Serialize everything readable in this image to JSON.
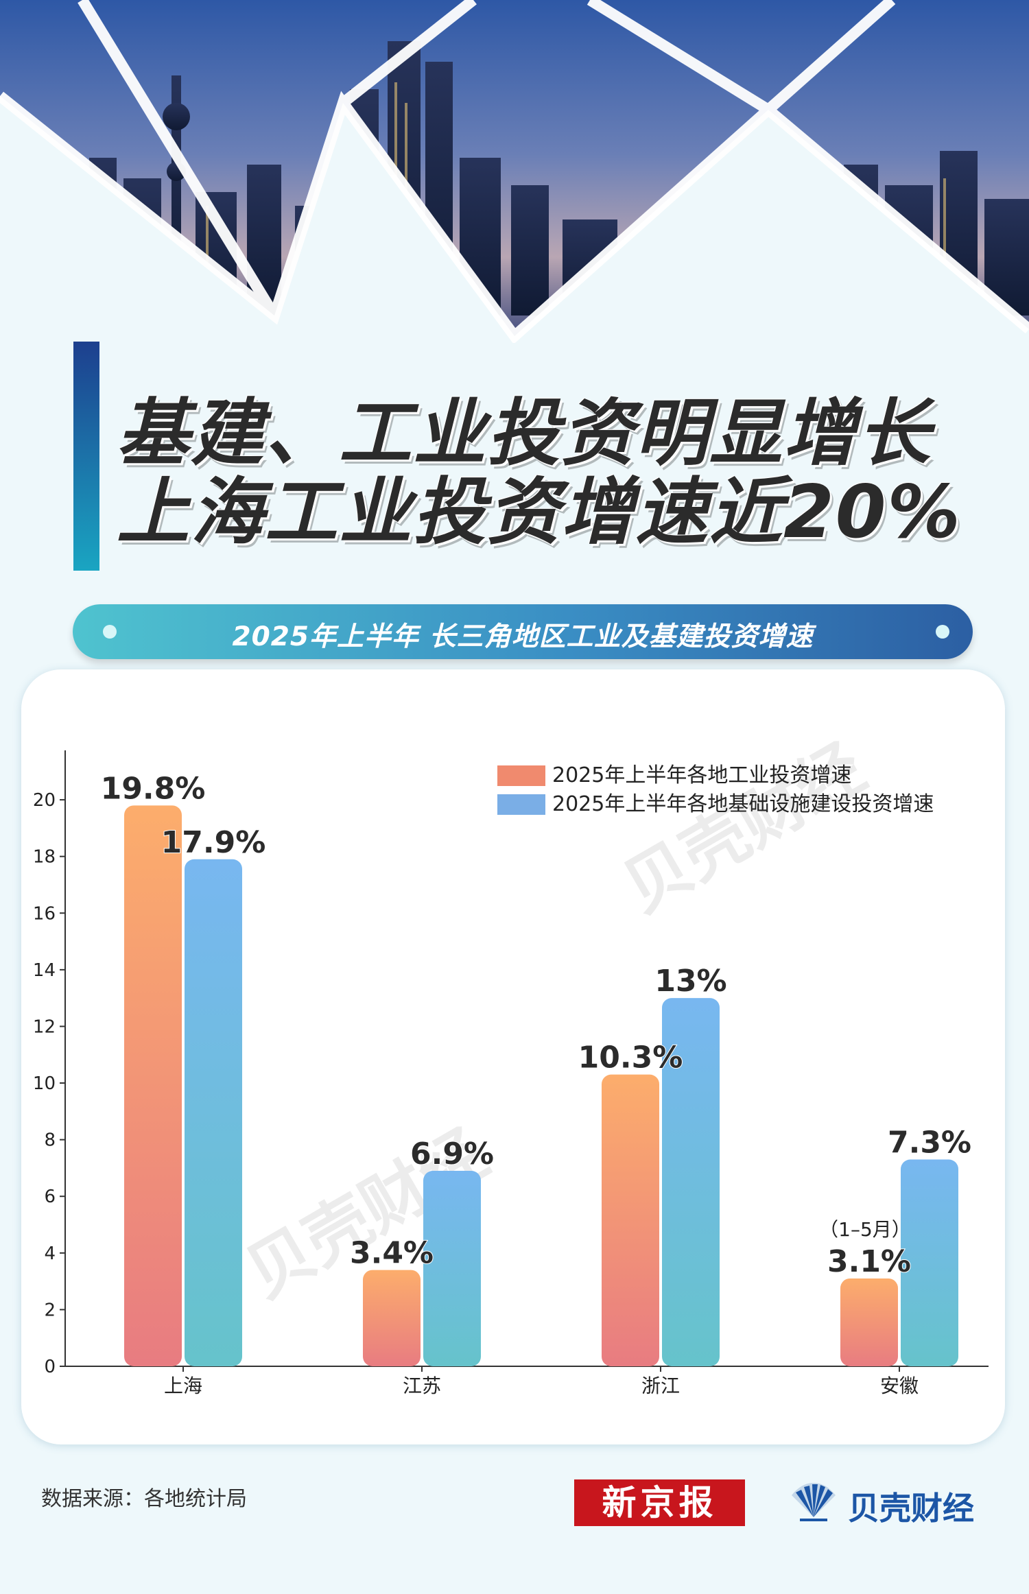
{
  "headline": {
    "line1": "基建、工业投资明显增长",
    "line2": "上海工业投资增速近20%"
  },
  "subtitle": "2025年上半年 长三角地区工业及基建投资增速",
  "watermark": "贝壳财经",
  "source_note": "数据来源：各地统计局",
  "logos": {
    "xinjingbao": "新京报",
    "beike": "贝壳财经"
  },
  "colors": {
    "background": "#eef8fb",
    "industrial_top": "#fcad6c",
    "industrial_bottom": "#e87c81",
    "infrastructure_top": "#78b7f0",
    "infrastructure_bottom": "#66c3cb",
    "title_bar_top": "#1d3f8e",
    "title_bar_bottom": "#1aa5c2"
  },
  "chart_data": {
    "type": "bar",
    "title": "2025年上半年 长三角地区工业及基建投资增速",
    "xlabel": "",
    "ylabel": "",
    "categories": [
      "上海",
      "江苏",
      "浙江",
      "安徽"
    ],
    "series": [
      {
        "name": "2025年上半年各地工业投资增速",
        "values": [
          19.8,
          3.4,
          10.3,
          3.1
        ],
        "labels": [
          "19.8%",
          "3.4%",
          "10.3%",
          "3.1%"
        ],
        "color": "#fcad6c"
      },
      {
        "name": "2025年上半年各地基础设施建设投资增速",
        "values": [
          17.9,
          6.9,
          13,
          7.3
        ],
        "labels": [
          "17.9%",
          "6.9%",
          "13%",
          "7.3%"
        ],
        "color": "#78b7f0"
      }
    ],
    "annotations": [
      {
        "category": "安徽",
        "series": 0,
        "text": "（1–5月）"
      }
    ],
    "yticks": [
      0,
      2,
      4,
      6,
      8,
      10,
      12,
      14,
      16,
      18,
      20
    ],
    "ylim": [
      0,
      21.6
    ],
    "grid": false,
    "legend": "top-right"
  }
}
